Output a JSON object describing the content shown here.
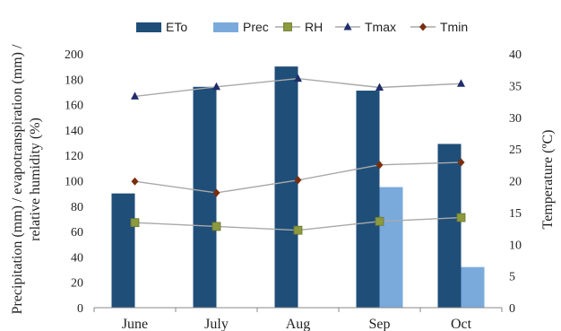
{
  "chart_data": {
    "type": "bar",
    "categories": [
      "June",
      "July",
      "Aug",
      "Sep",
      "Oct"
    ],
    "left_axis": {
      "label_line1": "Precipitation (mm) / evapotranspiration (mm) /",
      "label_line2": "relative humidity (%)",
      "ylim": [
        0,
        200
      ],
      "ticks": [
        "0",
        "20",
        "40",
        "60",
        "80",
        "100",
        "120",
        "140",
        "160",
        "180",
        "200"
      ]
    },
    "right_axis": {
      "label": "Temperature (ºC)",
      "ylim": [
        0,
        40
      ],
      "ticks": [
        "0",
        "5",
        "10",
        "15",
        "20",
        "25",
        "30",
        "35",
        "40"
      ]
    },
    "series": [
      {
        "name": "ETo",
        "kind": "bar",
        "axis": "left",
        "color": "#1f4e79",
        "values": [
          90,
          174,
          190,
          171,
          129
        ]
      },
      {
        "name": "Prec",
        "kind": "bar",
        "axis": "left",
        "color": "#7aaadc",
        "values": [
          0,
          0,
          0,
          95,
          32
        ]
      },
      {
        "name": "RH",
        "kind": "line",
        "axis": "left",
        "marker": "square",
        "color": "#8c9a3e",
        "values": [
          67,
          64,
          61,
          68,
          71
        ]
      },
      {
        "name": "Tmax",
        "kind": "line",
        "axis": "right",
        "marker": "triangle",
        "color": "#1f2d6b",
        "values": [
          33.3,
          34.8,
          36.1,
          34.7,
          35.3
        ]
      },
      {
        "name": "Tmin",
        "kind": "line",
        "axis": "right",
        "marker": "diamond",
        "color": "#7a2e0e",
        "values": [
          19.9,
          18.1,
          20.1,
          22.5,
          22.9
        ]
      }
    ],
    "legend_position": "top",
    "grid": false
  }
}
